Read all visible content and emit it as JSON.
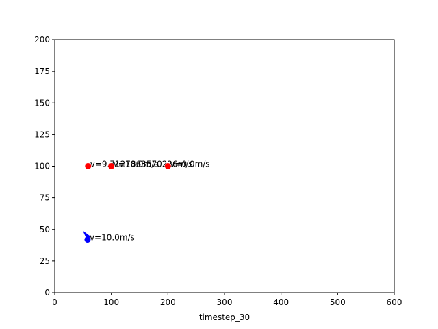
{
  "chart_data": {
    "type": "scatter",
    "title": "",
    "xlabel": "timestep_30",
    "ylabel": "",
    "xlim": [
      0,
      600
    ],
    "ylim": [
      0,
      200
    ],
    "xticks": [
      0,
      100,
      200,
      300,
      400,
      500,
      600
    ],
    "yticks": [
      0,
      25,
      50,
      75,
      100,
      125,
      150,
      175,
      200
    ],
    "grid": false,
    "series": [
      {
        "color": "#ff0000",
        "marker": "circle",
        "points": [
          {
            "x": 59,
            "y": 100,
            "label": "v=9.7127863570226m/s"
          },
          {
            "x": 100,
            "y": 100,
            "label": "v=10.0m/s"
          },
          {
            "x": 200,
            "y": 100,
            "label": "v=0.0m/s"
          }
        ]
      },
      {
        "color": "#0000ff",
        "marker": "circle",
        "heading_marker": "triangle",
        "points": [
          {
            "x": 58,
            "y": 42,
            "label": "v=10.0m/s"
          }
        ]
      }
    ]
  }
}
